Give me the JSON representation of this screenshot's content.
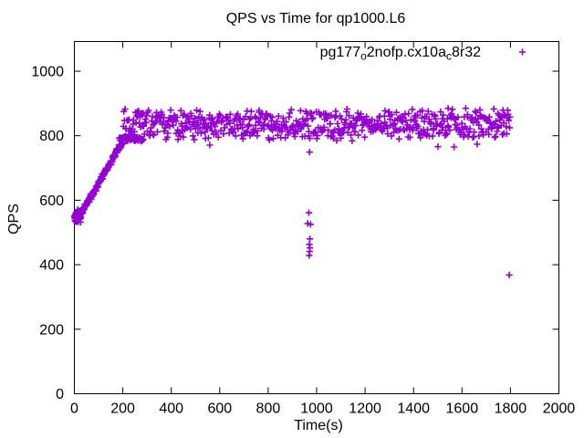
{
  "colors": {
    "series": "#9400d3",
    "text": "#000000",
    "border": "#000000",
    "background": "#ffffff"
  },
  "legend": {
    "parts": [
      {
        "text": "pg177",
        "sub": false
      },
      {
        "text": "o",
        "sub": true
      },
      {
        "text": "2nofp.cx10a",
        "sub": false
      },
      {
        "text": "c",
        "sub": true
      },
      {
        "text": "8r32",
        "sub": false
      }
    ],
    "marker": "plus",
    "position": "top-right-inside"
  },
  "chart_data": {
    "type": "scatter",
    "title": "QPS vs Time for qp1000.L6",
    "xlabel": "Time(s)",
    "ylabel": "QPS",
    "series_name": "pg177_o2nofp.cx10a_c8r32",
    "marker": "plus",
    "grid": false,
    "border": "full box, mirrored inward ticks",
    "xlim": [
      0,
      2000
    ],
    "ylim": [
      0,
      1092
    ],
    "x_ticks": [
      0,
      200,
      400,
      600,
      800,
      1000,
      1200,
      1400,
      1600,
      1800,
      2000
    ],
    "y_ticks": [
      0,
      200,
      400,
      600,
      800,
      1000
    ],
    "seed": 7,
    "summary": "QPS ramps from ~545 at t=0 to ~790 by t=200s, then a dense noisy plateau of ~800-875 QPS (excursions ~760-920) until t~1800s; transient drop near t=970s and one stray low point near t=1795s",
    "segments": [
      {
        "kind": "cluster",
        "t0": 0,
        "t1": 26,
        "q": 550,
        "jitter": 22,
        "n": 46
      },
      {
        "kind": "ramp",
        "t0": 26,
        "t1": 200,
        "q0": 556,
        "q1": 782,
        "jitter": 11,
        "n": 150
      },
      {
        "kind": "shelf",
        "t0": 185,
        "t1": 285,
        "q": 791,
        "jitter": 9,
        "n": 55
      },
      {
        "kind": "band",
        "t0": 200,
        "t1": 1800,
        "center": 836,
        "spread_core": 76,
        "spread_soft": 30,
        "tail_p": 0.07,
        "tail_extra": 46,
        "qmin": 758,
        "qmax": 921,
        "n": 640
      }
    ],
    "outliers": [
      [
        559,
        771
      ],
      [
        971,
        749
      ],
      [
        968,
        561
      ],
      [
        963,
        528
      ],
      [
        975,
        525
      ],
      [
        972,
        480
      ],
      [
        970,
        463
      ],
      [
        972,
        452
      ],
      [
        971,
        441
      ],
      [
        969,
        429
      ],
      [
        1795,
        368
      ]
    ]
  }
}
